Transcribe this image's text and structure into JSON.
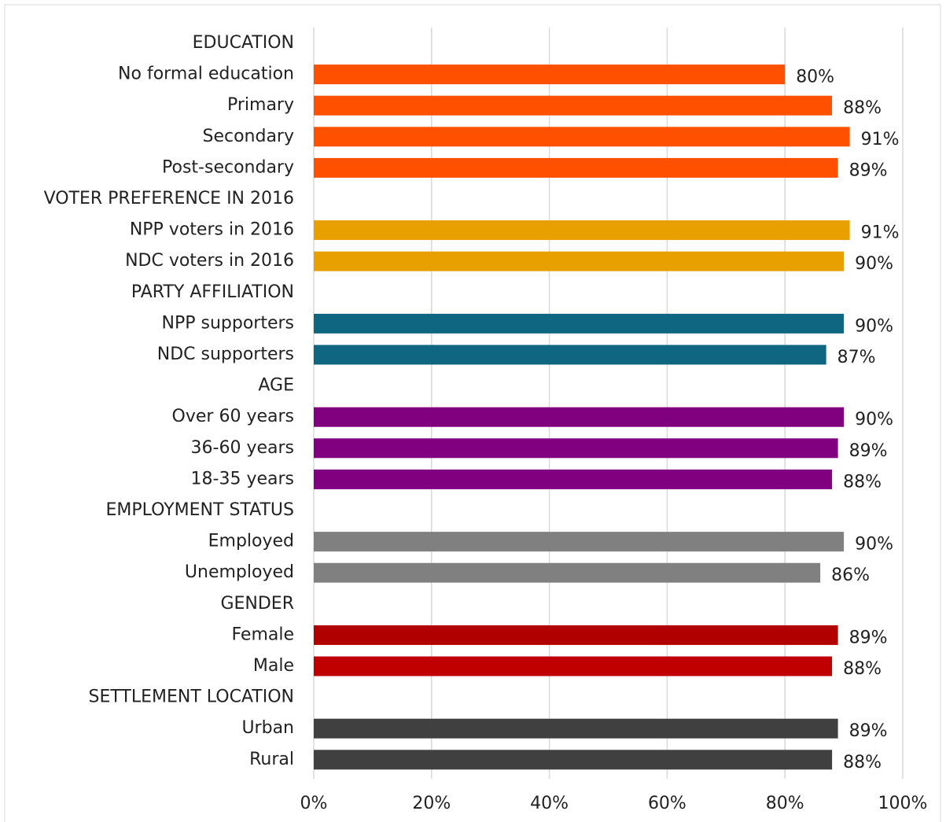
{
  "chart_data": {
    "type": "bar",
    "orientation": "horizontal",
    "groups": [
      {
        "name": "EDUCATION",
        "categories": [
          "No formal education",
          "Primary",
          "Secondary",
          "Post-secondary"
        ],
        "values": [
          80,
          88,
          91,
          89
        ],
        "value_labels": [
          "80%",
          "88%",
          "91%",
          "89%"
        ],
        "colors": [
          "#ff5000",
          "#ff5000",
          "#ff5000",
          "#ff5000"
        ]
      },
      {
        "name": "VOTER PREFERENCE IN 2016",
        "categories": [
          "NPP voters in 2016",
          "NDC voters in 2016"
        ],
        "values": [
          91,
          90
        ],
        "value_labels": [
          "91%",
          "90%"
        ],
        "colors": [
          "#e8a000",
          "#e8a000"
        ]
      },
      {
        "name": "PARTY AFFILIATION",
        "categories": [
          "NPP supporters",
          "NDC supporters"
        ],
        "values": [
          90,
          87
        ],
        "value_labels": [
          "90%",
          "87%"
        ],
        "colors": [
          "#0e6680",
          "#0e6680"
        ]
      },
      {
        "name": "AGE",
        "categories": [
          "Over 60 years",
          "36-60 years",
          "18-35 years"
        ],
        "values": [
          90,
          89,
          88
        ],
        "value_labels": [
          "90%",
          "89%",
          "88%"
        ],
        "colors": [
          "#800080",
          "#800080",
          "#800080"
        ]
      },
      {
        "name": "EMPLOYMENT STATUS",
        "categories": [
          "Employed",
          "Unemployed"
        ],
        "values": [
          90,
          86
        ],
        "value_labels": [
          "90%",
          "86%"
        ],
        "colors": [
          "#808080",
          "#808080"
        ]
      },
      {
        "name": "GENDER",
        "categories": [
          "Female",
          "Male"
        ],
        "values": [
          89,
          88
        ],
        "value_labels": [
          "89%",
          "88%"
        ],
        "colors": [
          "#b00000",
          "#c00000"
        ]
      },
      {
        "name": "SETTLEMENT LOCATION",
        "categories": [
          "Urban",
          "Rural"
        ],
        "values": [
          89,
          88
        ],
        "value_labels": [
          "89%",
          "88%"
        ],
        "colors": [
          "#404040",
          "#404040"
        ]
      }
    ],
    "xlim": [
      0,
      100
    ],
    "xticks": [
      {
        "value": 0,
        "label": "0%"
      },
      {
        "value": 20,
        "label": "20%"
      },
      {
        "value": 40,
        "label": "40%"
      },
      {
        "value": 60,
        "label": "60%"
      },
      {
        "value": 80,
        "label": "80%"
      },
      {
        "value": 100,
        "label": "100%"
      }
    ],
    "grid": true
  }
}
